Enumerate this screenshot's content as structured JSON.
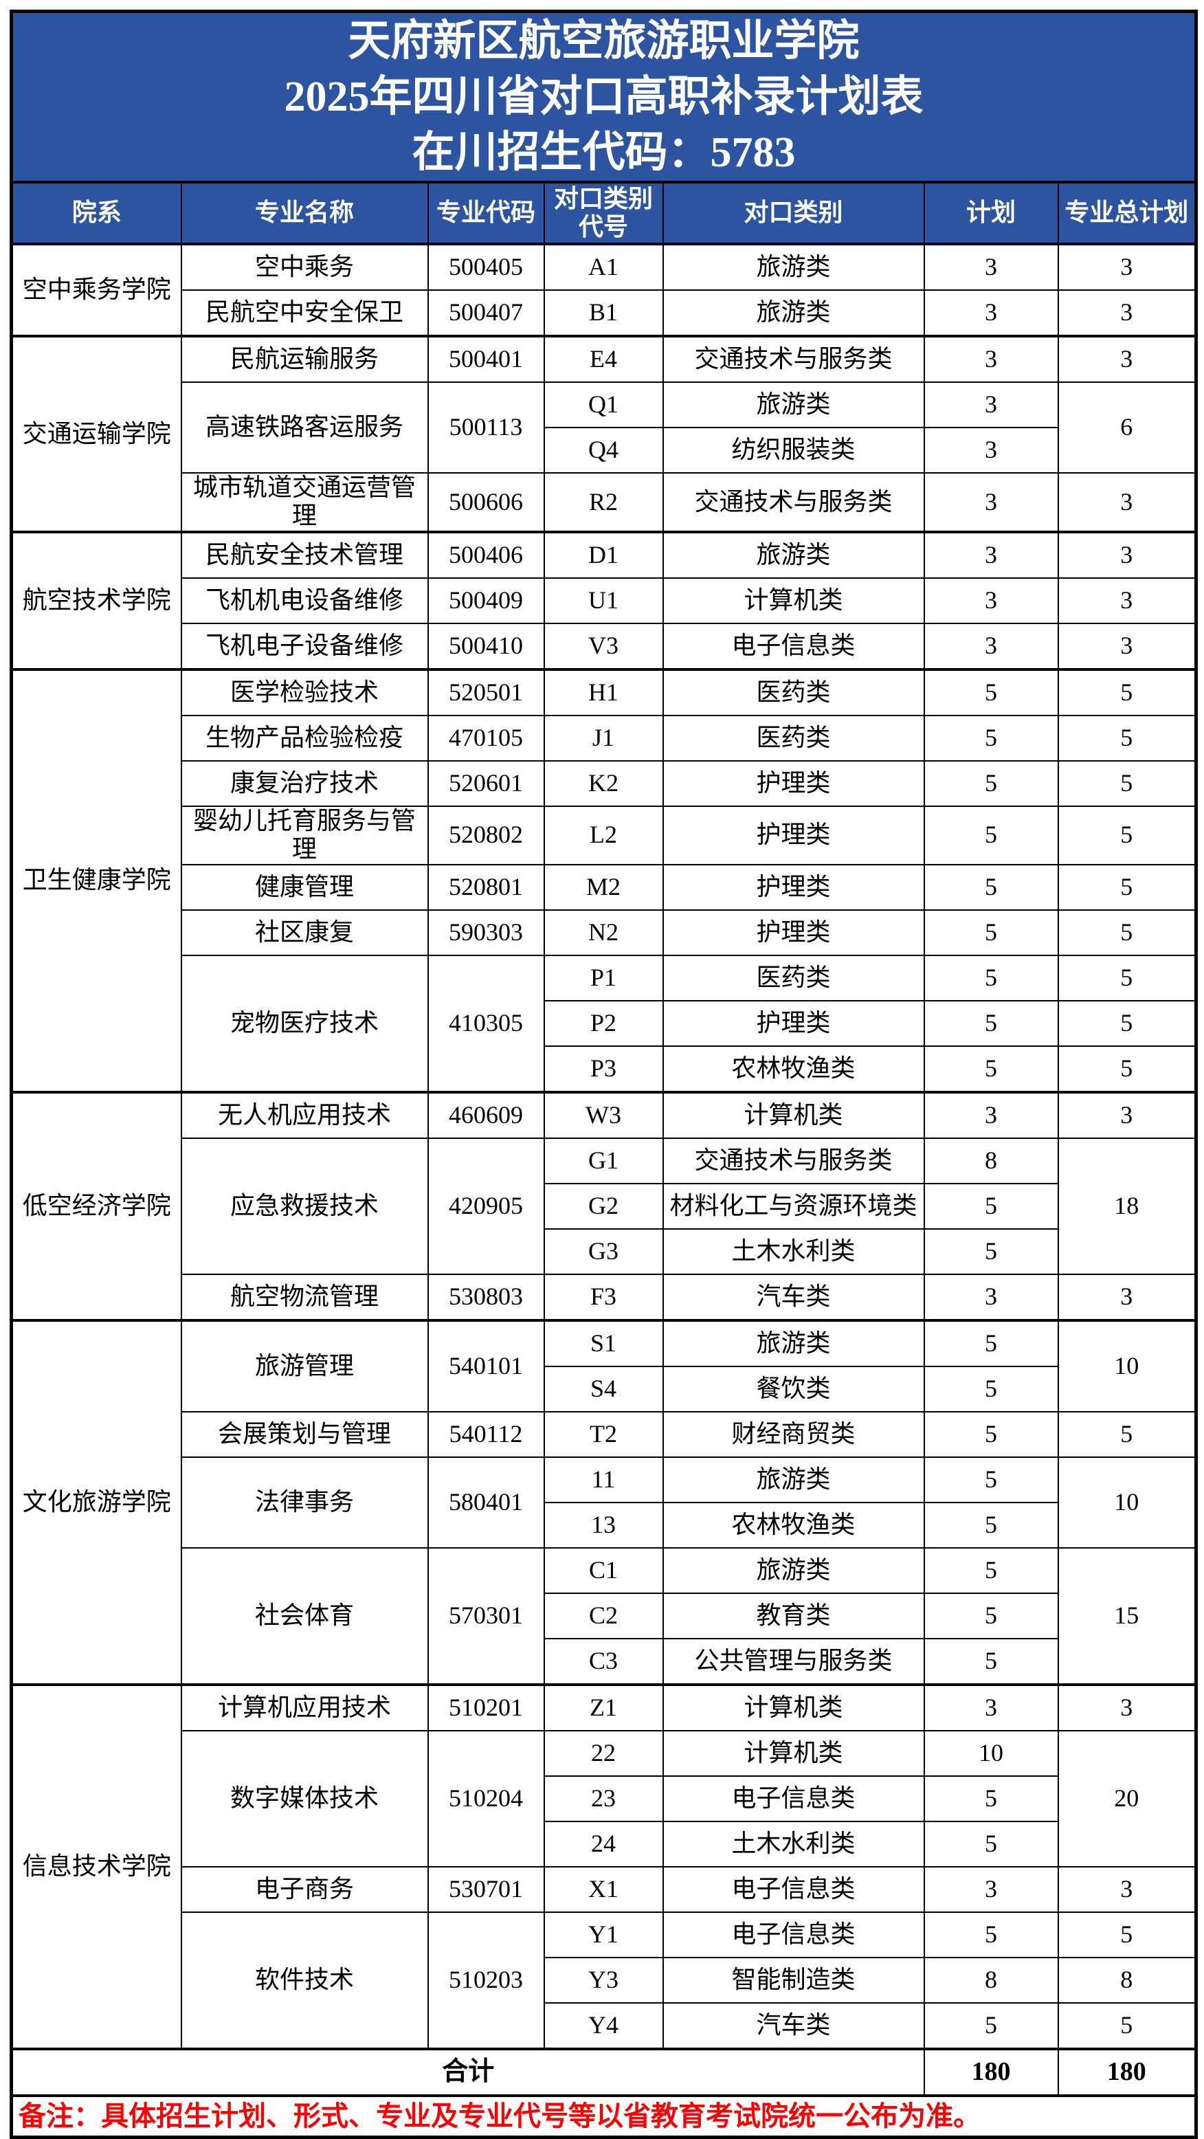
{
  "title": {
    "line1": "天府新区航空旅游职业学院",
    "line2": "2025年四川省对口高职补录计划表",
    "line3": "在川招生代码：5783"
  },
  "header": {
    "college": "院系",
    "major": "专业名称",
    "major_code": "专业代码",
    "cat_code": "对口类别代号",
    "cat": "对口类别",
    "plan": "计划",
    "major_total": "专业总计划"
  },
  "colors": {
    "header_bg": "#2D54A1",
    "header_text": "#FFFFFF",
    "note_text": "#FF0000",
    "border": "#000000"
  },
  "table": {
    "groups": [
      {
        "college": "空中乘务学院",
        "majors": [
          {
            "name": "空中乘务",
            "code": "500405",
            "rows": [
              {
                "cat_code": "A1",
                "cat": "旅游类",
                "plan": "3",
                "total": "3"
              }
            ]
          },
          {
            "name": "民航空中安全保卫",
            "code": "500407",
            "rows": [
              {
                "cat_code": "B1",
                "cat": "旅游类",
                "plan": "3",
                "total": "3"
              }
            ]
          }
        ]
      },
      {
        "college": "交通运输学院",
        "majors": [
          {
            "name": "民航运输服务",
            "code": "500401",
            "rows": [
              {
                "cat_code": "E4",
                "cat": "交通技术与服务类",
                "plan": "3",
                "total": "3"
              }
            ]
          },
          {
            "name": "高速铁路客运服务",
            "code": "500113",
            "merged_total": "6",
            "rows": [
              {
                "cat_code": "Q1",
                "cat": "旅游类",
                "plan": "3"
              },
              {
                "cat_code": "Q4",
                "cat": "纺织服装类",
                "plan": "3"
              }
            ]
          },
          {
            "name": "城市轨道交通运营管理",
            "code": "500606",
            "rows": [
              {
                "cat_code": "R2",
                "cat": "交通技术与服务类",
                "plan": "3",
                "total": "3"
              }
            ]
          }
        ]
      },
      {
        "college": "航空技术学院",
        "majors": [
          {
            "name": "民航安全技术管理",
            "code": "500406",
            "rows": [
              {
                "cat_code": "D1",
                "cat": "旅游类",
                "plan": "3",
                "total": "3"
              }
            ]
          },
          {
            "name": "飞机机电设备维修",
            "code": "500409",
            "rows": [
              {
                "cat_code": "U1",
                "cat": "计算机类",
                "plan": "3",
                "total": "3"
              }
            ]
          },
          {
            "name": "飞机电子设备维修",
            "code": "500410",
            "rows": [
              {
                "cat_code": "V3",
                "cat": "电子信息类",
                "plan": "3",
                "total": "3"
              }
            ]
          }
        ]
      },
      {
        "college": "卫生健康学院",
        "majors": [
          {
            "name": "医学检验技术",
            "code": "520501",
            "rows": [
              {
                "cat_code": "H1",
                "cat": "医药类",
                "plan": "5",
                "total": "5"
              }
            ]
          },
          {
            "name": "生物产品检验检疫",
            "code": "470105",
            "rows": [
              {
                "cat_code": "J1",
                "cat": "医药类",
                "plan": "5",
                "total": "5"
              }
            ]
          },
          {
            "name": "康复治疗技术",
            "code": "520601",
            "rows": [
              {
                "cat_code": "K2",
                "cat": "护理类",
                "plan": "5",
                "total": "5"
              }
            ]
          },
          {
            "name": "婴幼儿托育服务与管理",
            "code": "520802",
            "rows": [
              {
                "cat_code": "L2",
                "cat": "护理类",
                "plan": "5",
                "total": "5"
              }
            ]
          },
          {
            "name": "健康管理",
            "code": "520801",
            "rows": [
              {
                "cat_code": "M2",
                "cat": "护理类",
                "plan": "5",
                "total": "5"
              }
            ]
          },
          {
            "name": "社区康复",
            "code": "590303",
            "rows": [
              {
                "cat_code": "N2",
                "cat": "护理类",
                "plan": "5",
                "total": "5"
              }
            ]
          },
          {
            "name": "宠物医疗技术",
            "code": "410305",
            "rows": [
              {
                "cat_code": "P1",
                "cat": "医药类",
                "plan": "5",
                "total": "5"
              },
              {
                "cat_code": "P2",
                "cat": "护理类",
                "plan": "5",
                "total": "5"
              },
              {
                "cat_code": "P3",
                "cat": "农林牧渔类",
                "plan": "5",
                "total": "5"
              }
            ]
          }
        ]
      },
      {
        "college": "低空经济学院",
        "majors": [
          {
            "name": "无人机应用技术",
            "code": "460609",
            "rows": [
              {
                "cat_code": "W3",
                "cat": "计算机类",
                "plan": "3",
                "total": "3"
              }
            ]
          },
          {
            "name": "应急救援技术",
            "code": "420905",
            "merged_total": "18",
            "rows": [
              {
                "cat_code": "G1",
                "cat": "交通技术与服务类",
                "plan": "8"
              },
              {
                "cat_code": "G2",
                "cat": "材料化工与资源环境类",
                "plan": "5"
              },
              {
                "cat_code": "G3",
                "cat": "土木水利类",
                "plan": "5"
              }
            ]
          },
          {
            "name": "航空物流管理",
            "code": "530803",
            "rows": [
              {
                "cat_code": "F3",
                "cat": "汽车类",
                "plan": "3",
                "total": "3"
              }
            ]
          }
        ]
      },
      {
        "college": "文化旅游学院",
        "majors": [
          {
            "name": "旅游管理",
            "code": "540101",
            "merged_total": "10",
            "rows": [
              {
                "cat_code": "S1",
                "cat": "旅游类",
                "plan": "5"
              },
              {
                "cat_code": "S4",
                "cat": "餐饮类",
                "plan": "5"
              }
            ]
          },
          {
            "name": "会展策划与管理",
            "code": "540112",
            "rows": [
              {
                "cat_code": "T2",
                "cat": "财经商贸类",
                "plan": "5",
                "total": "5"
              }
            ]
          },
          {
            "name": "法律事务",
            "code": "580401",
            "merged_total": "10",
            "rows": [
              {
                "cat_code": "11",
                "cat": "旅游类",
                "plan": "5"
              },
              {
                "cat_code": "13",
                "cat": "农林牧渔类",
                "plan": "5"
              }
            ]
          },
          {
            "name": "社会体育",
            "code": "570301",
            "merged_total": "15",
            "rows": [
              {
                "cat_code": "C1",
                "cat": "旅游类",
                "plan": "5"
              },
              {
                "cat_code": "C2",
                "cat": "教育类",
                "plan": "5"
              },
              {
                "cat_code": "C3",
                "cat": "公共管理与服务类",
                "plan": "5"
              }
            ]
          }
        ]
      },
      {
        "college": "信息技术学院",
        "majors": [
          {
            "name": "计算机应用技术",
            "code": "510201",
            "rows": [
              {
                "cat_code": "Z1",
                "cat": "计算机类",
                "plan": "3",
                "total": "3"
              }
            ]
          },
          {
            "name": "数字媒体技术",
            "code": "510204",
            "merged_total": "20",
            "rows": [
              {
                "cat_code": "22",
                "cat": "计算机类",
                "plan": "10"
              },
              {
                "cat_code": "23",
                "cat": "电子信息类",
                "plan": "5"
              },
              {
                "cat_code": "24",
                "cat": "土木水利类",
                "plan": "5"
              }
            ]
          },
          {
            "name": "电子商务",
            "code": "530701",
            "rows": [
              {
                "cat_code": "X1",
                "cat": "电子信息类",
                "plan": "3",
                "total": "3"
              }
            ]
          },
          {
            "name": "软件技术",
            "code": "510203",
            "rows": [
              {
                "cat_code": "Y1",
                "cat": "电子信息类",
                "plan": "5",
                "total": "5"
              },
              {
                "cat_code": "Y3",
                "cat": "智能制造类",
                "plan": "8",
                "total": "8"
              },
              {
                "cat_code": "Y4",
                "cat": "汽车类",
                "plan": "5",
                "total": "5"
              }
            ]
          }
        ]
      }
    ]
  },
  "footer": {
    "total_label": "合计",
    "total_plan": "180",
    "total_major_total": "180",
    "note": "备注：具体招生计划、形式、专业及专业代号等以省教育考试院统一公布为准。"
  }
}
